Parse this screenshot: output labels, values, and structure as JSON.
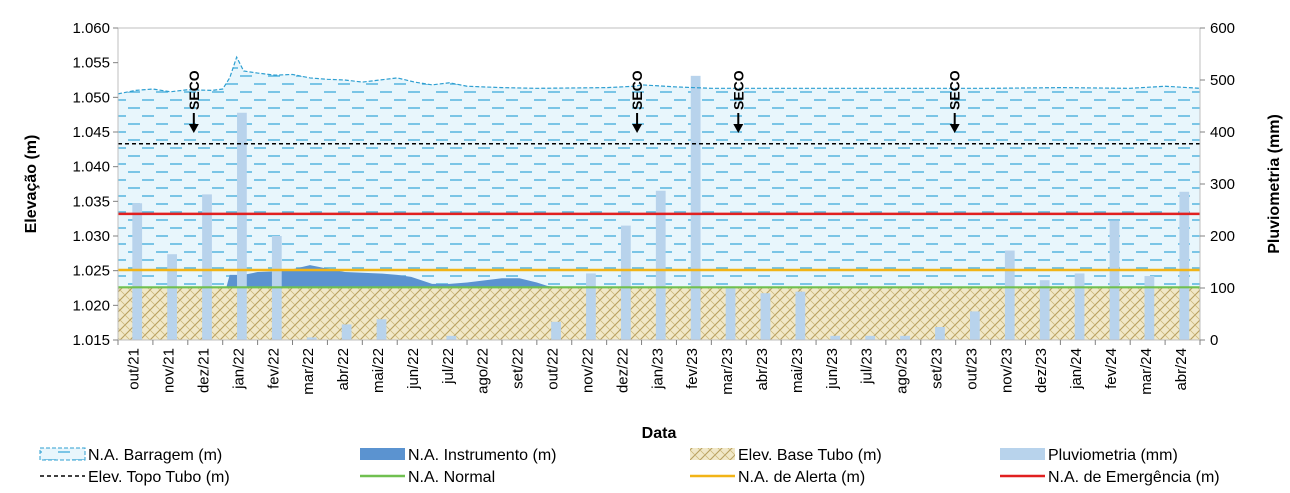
{
  "chart_data": {
    "type": "combo",
    "xlabel": "Data",
    "ylabel": "Elevação (m)",
    "y2label": "Pluviometria (mm)",
    "ylim": [
      1.015,
      1.06
    ],
    "y2lim": [
      0,
      600
    ],
    "yticks": [
      "1.015",
      "1.020",
      "1.025",
      "1.030",
      "1.035",
      "1.040",
      "1.045",
      "1.050",
      "1.055",
      "1.060"
    ],
    "y2ticks": [
      "0",
      "100",
      "200",
      "300",
      "400",
      "500",
      "600"
    ],
    "categories": [
      "out/21",
      "nov/21",
      "dez/21",
      "jan/22",
      "fev/22",
      "mar/22",
      "abr/22",
      "mai/22",
      "jun/22",
      "jul/22",
      "ago/22",
      "set/22",
      "out/22",
      "nov/22",
      "dez/22",
      "jan/23",
      "fev/23",
      "mar/23",
      "abr/23",
      "mai/23",
      "jun/23",
      "jul/23",
      "ago/23",
      "set/23",
      "out/23",
      "nov/23",
      "dez/23",
      "jan/24",
      "fev/24",
      "mar/24",
      "abr/24"
    ],
    "pluviometria": [
      263,
      165,
      280,
      437,
      200,
      5,
      30,
      40,
      0,
      8,
      0,
      0,
      35,
      128,
      220,
      287,
      508,
      103,
      90,
      93,
      8,
      8,
      8,
      25,
      55,
      172,
      115,
      128,
      230,
      123,
      285
    ],
    "barragem": [
      [
        0,
        1.0505
      ],
      [
        0.5,
        1.051
      ],
      [
        1,
        1.0512
      ],
      [
        1.5,
        1.0508
      ],
      [
        2,
        1.0511
      ],
      [
        2.7,
        1.051
      ],
      [
        3,
        1.0512
      ],
      [
        3.2,
        1.0528
      ],
      [
        3.4,
        1.0558
      ],
      [
        3.6,
        1.0538
      ],
      [
        4,
        1.0535
      ],
      [
        4.5,
        1.0532
      ],
      [
        5,
        1.0533
      ],
      [
        5.5,
        1.0528
      ],
      [
        6,
        1.0526
      ],
      [
        6.5,
        1.0525
      ],
      [
        7,
        1.0522
      ],
      [
        7.5,
        1.0525
      ],
      [
        8,
        1.0528
      ],
      [
        8.5,
        1.0522
      ],
      [
        9,
        1.0518
      ],
      [
        9.5,
        1.0521
      ],
      [
        10,
        1.0516
      ],
      [
        11,
        1.0514
      ],
      [
        12,
        1.0513
      ],
      [
        14,
        1.0514
      ],
      [
        14.8,
        1.0516
      ],
      [
        15,
        1.0518
      ],
      [
        16,
        1.0515
      ],
      [
        17,
        1.0513
      ],
      [
        20,
        1.0513
      ],
      [
        25,
        1.0513
      ],
      [
        27,
        1.0514
      ],
      [
        29,
        1.0513
      ],
      [
        30,
        1.0516
      ],
      [
        31,
        1.0513
      ]
    ],
    "instrumento": [
      [
        3.1,
        1.0225
      ],
      [
        3.2,
        1.0244
      ],
      [
        3.4,
        1.0244
      ],
      [
        3.5,
        1.0243
      ],
      [
        4,
        1.0248
      ],
      [
        4.5,
        1.0249
      ],
      [
        5,
        1.0252
      ],
      [
        5.5,
        1.0258
      ],
      [
        6,
        1.0253
      ],
      [
        6.5,
        1.0248
      ],
      [
        7,
        1.0247
      ],
      [
        7.5,
        1.0246
      ],
      [
        8,
        1.0244
      ],
      [
        8.4,
        1.0241
      ],
      [
        8.7,
        1.0236
      ],
      [
        9,
        1.0231
      ],
      [
        9.5,
        1.0231
      ],
      [
        10,
        1.0233
      ],
      [
        10.5,
        1.0236
      ],
      [
        11,
        1.0239
      ],
      [
        11.5,
        1.0239
      ],
      [
        12,
        1.0233
      ],
      [
        12.3,
        1.0228
      ],
      [
        12.6,
        1.0226
      ],
      [
        13.2,
        1.0225
      ]
    ],
    "elev_base_tubo": 1.0225,
    "elev_topo_tubo": 1.0433,
    "na_normal": 1.0226,
    "na_alerta": 1.0251,
    "na_emergencia": 1.0332,
    "annotations": [
      {
        "text": "SECO",
        "x": 2.0
      },
      {
        "text": "SECO",
        "x": 14.7
      },
      {
        "text": "SECO",
        "x": 17.6
      },
      {
        "text": "SECO",
        "x": 23.8
      }
    ],
    "legend": [
      {
        "label": "N.A. Barragem (m)",
        "swatch": "dam"
      },
      {
        "label": "N.A. Instrumento (m)",
        "swatch": "instr"
      },
      {
        "label": "Elev. Base Tubo (m)",
        "swatch": "base"
      },
      {
        "label": "Pluviometria (mm)",
        "swatch": "rain"
      },
      {
        "label": "Elev. Topo Tubo (m)",
        "swatch": "topo"
      },
      {
        "label": "N.A. Normal",
        "swatch": "normal"
      },
      {
        "label": "N.A. de Alerta (m)",
        "swatch": "alerta"
      },
      {
        "label": "N.A. de Emergência (m)",
        "swatch": "emerg"
      }
    ],
    "colors": {
      "barragem_line": "#2e9fd1",
      "barragem_dash": "#4bb0dc",
      "instrumento": "#5b93d0",
      "base_tubo": "#d7c58f",
      "pluviometria": "#b8d3ec",
      "topo": "#000000",
      "normal": "#70c050",
      "alerta": "#f2b416",
      "emergencia": "#e12020"
    }
  }
}
